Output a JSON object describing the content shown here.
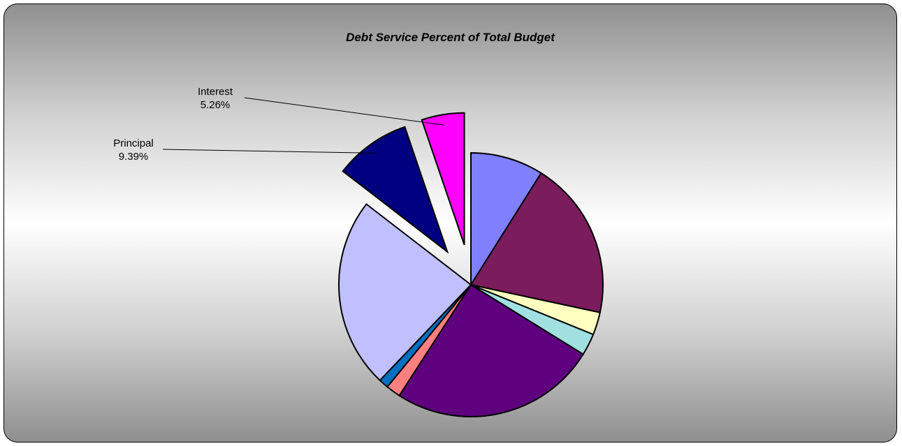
{
  "chart_data": {
    "type": "pie",
    "title": "Debt Service Percent of Total Budget",
    "slices": [
      {
        "value": 9.0,
        "color": "#8080ff",
        "show_label": false
      },
      {
        "value": 19.6,
        "color": "#7b1c5c",
        "show_label": false
      },
      {
        "value": 2.8,
        "color": "#ffffc0",
        "show_label": false
      },
      {
        "value": 2.7,
        "color": "#a0e0e0",
        "show_label": false
      },
      {
        "value": 25.5,
        "color": "#5f007f",
        "show_label": false
      },
      {
        "value": 1.8,
        "color": "#ff8080",
        "show_label": false
      },
      {
        "value": 1.2,
        "color": "#0070c0",
        "show_label": false
      },
      {
        "value": 23.55,
        "color": "#c0c0ff",
        "show_label": false
      },
      {
        "name": "Principal",
        "value": 9.39,
        "value_label": "9.39%",
        "color": "#000080",
        "exploded": true,
        "show_label": true
      },
      {
        "name": "Interest",
        "value": 5.26,
        "value_label": "5.26%",
        "color": "#ff00ff",
        "exploded": true,
        "show_label": true
      }
    ],
    "start_angle": "12 o'clock",
    "direction": "clockwise",
    "legend": "none"
  }
}
